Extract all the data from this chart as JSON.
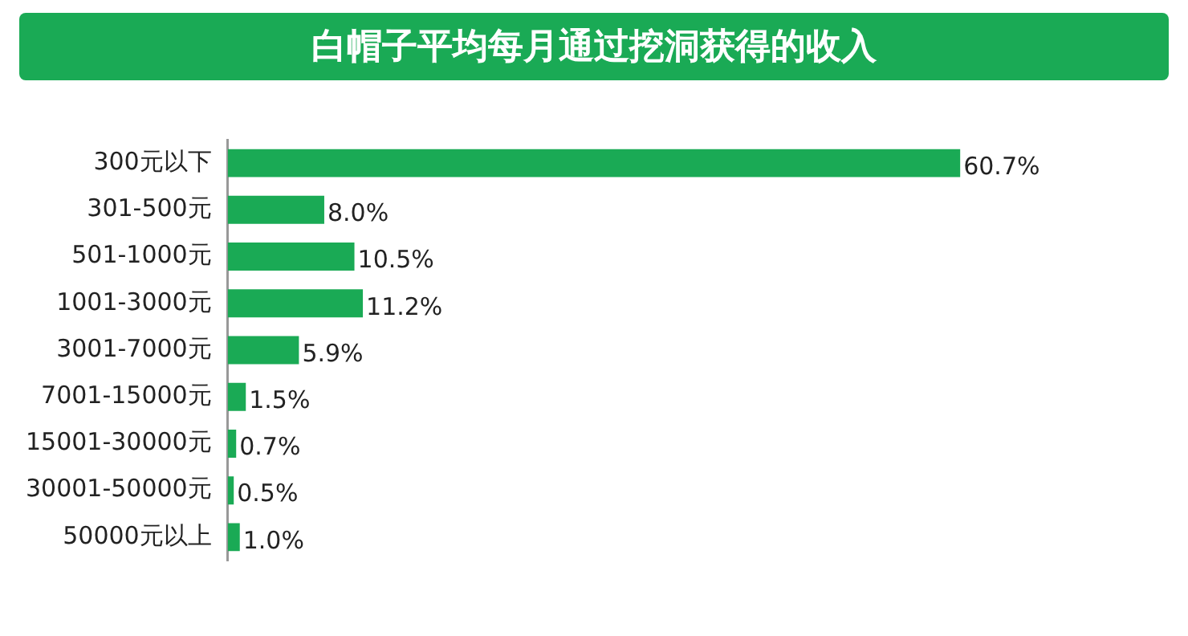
{
  "chart_data": {
    "type": "bar",
    "orientation": "horizontal",
    "title": "白帽子平均每月通过挖洞获得的收入",
    "categories": [
      "300元以下",
      "301-500元",
      "501-1000元",
      "1001-3000元",
      "3001-7000元",
      "7001-15000元",
      "15001-30000元",
      "30001-50000元",
      "50000元以上"
    ],
    "values": [
      60.7,
      8.0,
      10.5,
      11.2,
      5.9,
      1.5,
      0.7,
      0.5,
      1.0
    ],
    "value_labels": [
      "60.7%",
      "8.0%",
      "10.5%",
      "11.2%",
      "5.9%",
      "1.5%",
      "0.7%",
      "0.5%",
      "1.0%"
    ],
    "color": "#1aaa55",
    "grid": false,
    "legend": false
  }
}
